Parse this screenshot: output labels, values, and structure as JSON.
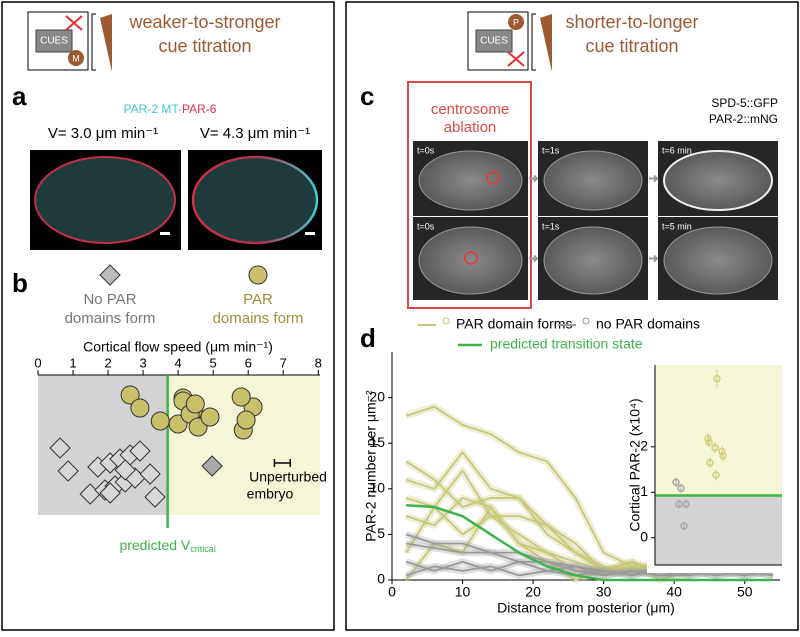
{
  "left": {
    "header": [
      "weaker-to-stronger",
      "cue titration"
    ],
    "icon": {
      "box": "CUES",
      "badge": "M"
    }
  },
  "right": {
    "header": [
      "shorter-to-longer",
      "cue titration"
    ],
    "icon": {
      "box": "CUES",
      "badge": "P"
    }
  },
  "panel_a": {
    "label": "a",
    "channels": [
      "PAR-2 MT-",
      "PAR-6"
    ],
    "speeds": [
      "V= 3.0 μm min⁻¹",
      "V= 4.3 μm min⁻¹"
    ]
  },
  "panel_c": {
    "label": "c",
    "box_label": [
      "centrosome",
      "ablation"
    ],
    "markers": [
      "SPD-5::GFP",
      "PAR-2::mNG"
    ],
    "timepoints": [
      "t=0s",
      "t=1s",
      "t=6 min",
      "t=0s",
      "t=1s",
      "t=5 min"
    ]
  },
  "chart_data": [
    {
      "type": "strip",
      "label": "b",
      "title": "Cortical flow speed (μm min⁻¹)",
      "xlim": [
        0,
        8.05
      ],
      "xticks": [
        0,
        1,
        2,
        3,
        4,
        5,
        6,
        7,
        8
      ],
      "threshold": 3.7,
      "threshold_label": "predicted V",
      "threshold_sub": "critical",
      "series": [
        {
          "name": [
            "No PAR",
            "domains form"
          ],
          "marker": "diamond",
          "color": "#bdbdbd",
          "values": [
            0.63,
            0.86,
            1.49,
            1.71,
            1.91,
            2.06,
            2.2,
            2.34,
            2.49,
            2.63,
            2.77,
            2.91,
            3.2,
            3.34,
            2.49,
            2.06,
            4.97
          ]
        },
        {
          "name": [
            "PAR",
            "domains form"
          ],
          "marker": "circle",
          "color": "#c9c06c",
          "values": [
            2.63,
            2.91,
            3.49,
            4.14,
            4.43,
            4.0,
            4.14,
            4.34,
            4.57,
            4.49,
            4.91,
            5.86,
            6.14,
            5.94,
            5.8
          ]
        }
      ],
      "annotation": {
        "label": [
          "Unperturbed",
          "embryo"
        ],
        "range": [
          6.75,
          7.2
        ]
      }
    },
    {
      "type": "line",
      "label": "d",
      "xlabel": "Distance from posterior (μm)",
      "ylabel": "PAR-2 number per μm⁻²",
      "xlim": [
        0,
        55
      ],
      "xticks": [
        0,
        10,
        20,
        30,
        40,
        50
      ],
      "ylim": [
        0,
        25
      ],
      "yticks": [
        0,
        5,
        10,
        15,
        20
      ],
      "x": [
        2,
        6,
        10,
        14,
        18,
        22,
        26,
        30,
        34,
        38,
        42,
        46,
        50,
        54
      ],
      "series": [
        {
          "name": "PAR domain forms",
          "color": "#c8c77a",
          "lines": [
            [
              18,
              19,
              17,
              16,
              14,
              13,
              9,
              3,
              1.5,
              1.5,
              1,
              1,
              1.5,
              1
            ],
            [
              13,
              11,
              8,
              9,
              9,
              6,
              3,
              1.5,
              1,
              1,
              1,
              1.5,
              2,
              1
            ],
            [
              11,
              10,
              14,
              10,
              9,
              5,
              3,
              1,
              1,
              2,
              1.5,
              1,
              1,
              1.5
            ],
            [
              9,
              8,
              12,
              7,
              7,
              6,
              4,
              1,
              2,
              1,
              2.5,
              2,
              1,
              2
            ],
            [
              7,
              6,
              9,
              8,
              4,
              3,
              2,
              1,
              1.5,
              1,
              1,
              2,
              1.5,
              1
            ],
            [
              3,
              8,
              5,
              7,
              5,
              3,
              1,
              1,
              1,
              1.5,
              2,
              1,
              1.5,
              1
            ],
            [
              0,
              4,
              3,
              8,
              4,
              2,
              0,
              1,
              2,
              0,
              1,
              2,
              2,
              1
            ]
          ]
        },
        {
          "name": "no PAR domains",
          "color": "#9a9a9a",
          "lines": [
            [
              5,
              4,
              4,
              3,
              3,
              2,
              1,
              0.5,
              1,
              0.5,
              1,
              0.5,
              1,
              0.5
            ],
            [
              4,
              3.5,
              3,
              3,
              2,
              2,
              1.5,
              0.5,
              1,
              0.5,
              0.5,
              1,
              0.5,
              1
            ],
            [
              2,
              1,
              2,
              1,
              2,
              1,
              0.5,
              1,
              0.5,
              1,
              1,
              0.5,
              1,
              0.5
            ],
            [
              0.5,
              1.5,
              1,
              1.5,
              0.5,
              1,
              1.5,
              1,
              0.5,
              1.5,
              0.5,
              1,
              0.5,
              1
            ]
          ]
        },
        {
          "name": "predicted transition state",
          "color": "#3cb44b",
          "values": [
            8.2,
            8,
            7,
            5,
            3,
            1.5,
            0.5,
            0,
            0,
            0,
            0,
            0,
            0,
            0
          ]
        }
      ]
    },
    {
      "type": "dot",
      "ylabel": "Cortical PAR-2 (x10⁴)",
      "ylim": [
        -0.6,
        3.8
      ],
      "yticks": [
        0,
        1,
        2
      ],
      "threshold": 0.93,
      "series": [
        {
          "color": "#a8a8a8",
          "values": [
            1.22,
            1.09,
            0.74,
            0.74,
            0.26
          ],
          "errors": [
            0.1,
            0.1,
            0.1,
            0.1,
            0.1
          ]
        },
        {
          "color": "#d4cf7c",
          "values": [
            2.18,
            1.98,
            1.9,
            2.1,
            1.38,
            1.8,
            1.65,
            3.5
          ],
          "errors": [
            0.12,
            0.12,
            0.12,
            0.12,
            0.12,
            0.12,
            0.12,
            0.2
          ]
        }
      ]
    }
  ]
}
